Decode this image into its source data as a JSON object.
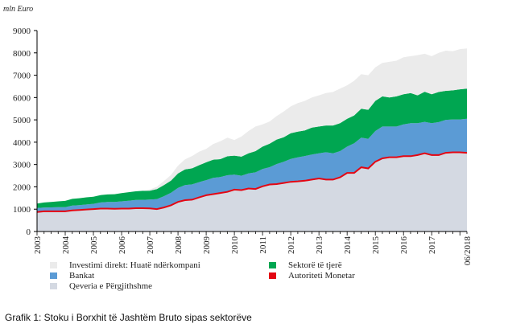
{
  "caption": "Grafik 1: Stoku i Borxhit të Jashtëm Bruto sipas sektorëve",
  "chart_data": {
    "type": "area",
    "stacked": true,
    "unit_label": "mln Euro",
    "ylim": [
      0,
      9000
    ],
    "y_ticks": [
      0,
      1000,
      2000,
      3000,
      4000,
      5000,
      6000,
      7000,
      8000,
      9000
    ],
    "y_tick_labels": [
      "0",
      "1000",
      "2000",
      "3000",
      "4000",
      "5000",
      "6000",
      "7000",
      "8000",
      "9000"
    ],
    "x_tick_labels": [
      "2003",
      "2004",
      "2005",
      "2006",
      "2007",
      "2008",
      "2009",
      "2010",
      "2011",
      "2012",
      "2013",
      "2014",
      "2015",
      "2016",
      "2017",
      "06/2018"
    ],
    "x": [
      2003.0,
      2003.25,
      2003.5,
      2003.75,
      2004.0,
      2004.25,
      2004.5,
      2004.75,
      2005.0,
      2005.25,
      2005.5,
      2005.75,
      2006.0,
      2006.25,
      2006.5,
      2006.75,
      2007.0,
      2007.25,
      2007.5,
      2007.75,
      2008.0,
      2008.25,
      2008.5,
      2008.75,
      2009.0,
      2009.25,
      2009.5,
      2009.75,
      2010.0,
      2010.25,
      2010.5,
      2010.75,
      2011.0,
      2011.25,
      2011.5,
      2011.75,
      2012.0,
      2012.25,
      2012.5,
      2012.75,
      2013.0,
      2013.25,
      2013.5,
      2013.75,
      2014.0,
      2014.25,
      2014.5,
      2014.75,
      2015.0,
      2015.25,
      2015.5,
      2015.75,
      2016.0,
      2016.25,
      2016.5,
      2016.75,
      2017.0,
      2017.25,
      2017.5,
      2017.75,
      2018.0,
      2018.25
    ],
    "series": [
      {
        "name": "Qeveria e Përgjithshme",
        "color": "#d4d9e2",
        "values": [
          850,
          880,
          880,
          880,
          880,
          920,
          940,
          960,
          980,
          1000,
          1000,
          990,
          1000,
          1000,
          1020,
          1020,
          1010,
          980,
          1050,
          1150,
          1300,
          1380,
          1400,
          1500,
          1600,
          1650,
          1700,
          1750,
          1850,
          1830,
          1900,
          1880,
          2000,
          2080,
          2100,
          2150,
          2200,
          2220,
          2250,
          2300,
          2350,
          2300,
          2300,
          2400,
          2600,
          2600,
          2850,
          2800,
          3100,
          3250,
          3300,
          3300,
          3350,
          3350,
          3400,
          3480,
          3400,
          3400,
          3500,
          3520,
          3520,
          3500
        ]
      },
      {
        "name": "Autoriteti Monetar",
        "color": "#e30613",
        "values": [
          50,
          50,
          50,
          50,
          50,
          50,
          50,
          50,
          50,
          50,
          50,
          50,
          50,
          50,
          50,
          50,
          50,
          50,
          50,
          50,
          50,
          50,
          50,
          50,
          50,
          50,
          50,
          50,
          50,
          50,
          50,
          50,
          50,
          50,
          50,
          50,
          50,
          50,
          50,
          50,
          50,
          50,
          50,
          50,
          50,
          50,
          50,
          50,
          50,
          50,
          50,
          50,
          50,
          50,
          50,
          50,
          50,
          50,
          50,
          50,
          50,
          50
        ]
      },
      {
        "name": "Bankat",
        "color": "#5b9bd5",
        "values": [
          150,
          140,
          150,
          160,
          160,
          190,
          190,
          200,
          210,
          250,
          270,
          280,
          300,
          330,
          340,
          350,
          370,
          420,
          480,
          530,
          600,
          650,
          660,
          660,
          650,
          700,
          690,
          720,
          650,
          620,
          650,
          720,
          750,
          750,
          870,
          920,
          1000,
          1050,
          1080,
          1100,
          1100,
          1200,
          1150,
          1150,
          1150,
          1300,
          1300,
          1300,
          1350,
          1400,
          1350,
          1350,
          1400,
          1450,
          1400,
          1380,
          1400,
          1450,
          1450,
          1450,
          1450,
          1500
        ]
      },
      {
        "name": "Sektorë të tjerë",
        "color": "#00a651",
        "values": [
          200,
          230,
          240,
          260,
          280,
          300,
          310,
          320,
          320,
          330,
          340,
          350,
          370,
          380,
          390,
          400,
          400,
          450,
          500,
          550,
          650,
          700,
          720,
          760,
          800,
          820,
          800,
          850,
          850,
          850,
          900,
          950,
          1000,
          1050,
          1100,
          1100,
          1150,
          1150,
          1150,
          1200,
          1200,
          1200,
          1250,
          1250,
          1250,
          1250,
          1300,
          1300,
          1350,
          1350,
          1300,
          1350,
          1350,
          1350,
          1250,
          1350,
          1300,
          1350,
          1300,
          1300,
          1350,
          1350
        ]
      },
      {
        "name": "Investimi direkt: Huatë ndërkompani",
        "color": "#ebebeb",
        "values": [
          0,
          0,
          0,
          0,
          0,
          0,
          0,
          0,
          0,
          0,
          0,
          0,
          0,
          0,
          0,
          0,
          50,
          100,
          180,
          250,
          350,
          450,
          550,
          600,
          600,
          700,
          800,
          830,
          700,
          900,
          1000,
          1100,
          1000,
          1000,
          1050,
          1150,
          1200,
          1280,
          1320,
          1350,
          1400,
          1450,
          1500,
          1550,
          1500,
          1550,
          1550,
          1550,
          1500,
          1500,
          1600,
          1600,
          1650,
          1650,
          1800,
          1700,
          1700,
          1750,
          1800,
          1750,
          1800,
          1800
        ]
      }
    ],
    "legend": [
      {
        "label": "Investimi direkt: Huatë ndërkompani",
        "color": "#ebebeb"
      },
      {
        "label": "Sektorë të tjerë",
        "color": "#00a651"
      },
      {
        "label": "Bankat",
        "color": "#5b9bd5"
      },
      {
        "label": "Autoriteti Monetar",
        "color": "#e30613"
      },
      {
        "label": "Qeveria e Përgjithshme",
        "color": "#d4d9e2"
      }
    ]
  }
}
